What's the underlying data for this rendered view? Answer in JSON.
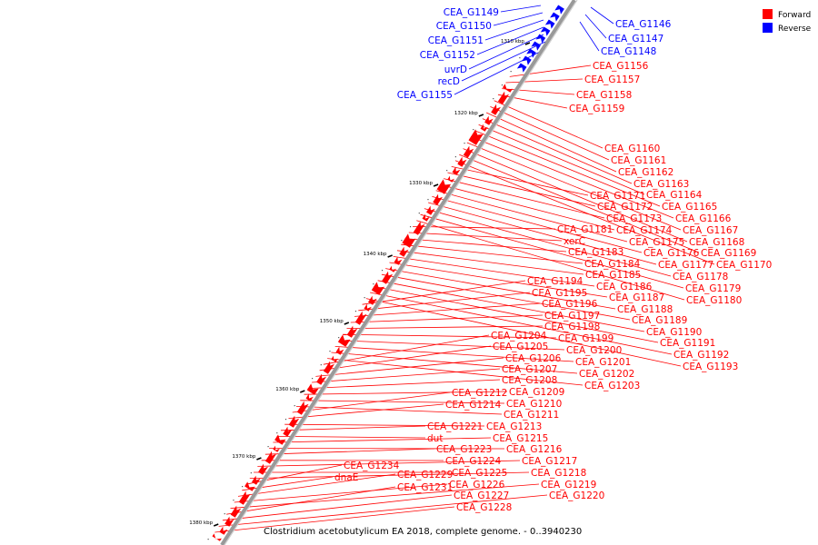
{
  "colors": {
    "forward": "#ff0000",
    "reverse": "#0000ff",
    "backbone": "#888888"
  },
  "legend": [
    {
      "label": "Forward",
      "color": "#ff0000"
    },
    {
      "label": "Reverse",
      "color": "#0000ff"
    }
  ],
  "caption": "Clostridium acetobutylicum EA 2018, complete genome. - 0..3940230",
  "ticks": [
    "1310 kbp",
    "1320 kbp",
    "1330 kbp",
    "1340 kbp",
    "1350 kbp",
    "1360 kbp",
    "1370 kbp",
    "1380 kbp"
  ],
  "reverse_labels": [
    "CEA_G1149",
    "CEA_G1150",
    "CEA_G1151",
    "CEA_G1152",
    "uvrD",
    "recD",
    "CEA_G1155"
  ],
  "reverse_labels_right": [
    "CEA_G1146",
    "CEA_G1147",
    "CEA_G1148"
  ],
  "forward_labels": [
    "CEA_G1156",
    "CEA_G1157",
    "CEA_G1158",
    "CEA_G1159",
    "CEA_G1160",
    "CEA_G1161",
    "CEA_G1162",
    "CEA_G1163",
    "CEA_G1164",
    "CEA_G1165",
    "CEA_G1166",
    "CEA_G1167",
    "CEA_G1168",
    "CEA_G1169",
    "CEA_G1170",
    "CEA_G1171",
    "CEA_G1172",
    "CEA_G1173",
    "CEA_G1174",
    "CEA_G1175",
    "CEA_G1176",
    "CEA_G1177",
    "CEA_G1178",
    "CEA_G1179",
    "CEA_G1180",
    "CEA_G1181",
    "xerC",
    "CEA_G1183",
    "CEA_G1184",
    "CEA_G1185",
    "CEA_G1186",
    "CEA_G1187",
    "CEA_G1188",
    "CEA_G1189",
    "CEA_G1190",
    "CEA_G1191",
    "CEA_G1192",
    "CEA_G1193",
    "CEA_G1194",
    "CEA_G1195",
    "CEA_G1196",
    "CEA_G1197",
    "CEA_G1198",
    "CEA_G1199",
    "CEA_G1200",
    "CEA_G1201",
    "CEA_G1202",
    "CEA_G1203",
    "CEA_G1204",
    "CEA_G1205",
    "CEA_G1206",
    "CEA_G1207",
    "CEA_G1208",
    "CEA_G1209",
    "CEA_G1210",
    "CEA_G1211",
    "CEA_G1212",
    "CEA_G1214",
    "CEA_G1213",
    "CEA_G1221",
    "dut",
    "CEA_G1215",
    "CEA_G1216",
    "CEA_G1223",
    "CEA_G1224",
    "CEA_G1217",
    "CEA_G1225",
    "CEA_G1218",
    "CEA_G1234",
    "dnaE",
    "CEA_G1229",
    "CEA_G1226",
    "CEA_G1219",
    "CEA_G1231",
    "CEA_G1227",
    "CEA_G1220",
    "CEA_G1228"
  ]
}
